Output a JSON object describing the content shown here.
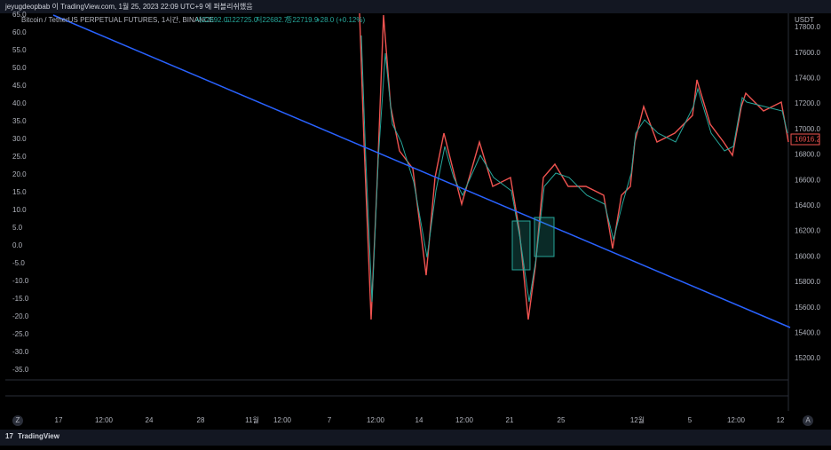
{
  "header": {
    "publish_text": "jeyugdeopbab 이 TradingView.com, 1월 25, 2023 22:09 UTC+9 에 퍼블리쉬했음"
  },
  "legend": {
    "symbol": "Bitcoin / TetherUS PERPETUAL FUTURES, 1시간, BINANCE",
    "open": "시22692.0",
    "high": "고22725.0",
    "low": "저22682.7",
    "close": "종22719.9",
    "change": "+28.0 (+0.12%)"
  },
  "left_axis": {
    "ticks": [
      "65.0",
      "60.0",
      "55.0",
      "50.0",
      "45.0",
      "40.0",
      "35.0",
      "30.0",
      "25.0",
      "20.0",
      "15.0",
      "10.0",
      "5.0",
      "0.0",
      "-5.0",
      "-10.0",
      "-15.0",
      "-20.0",
      "-25.0",
      "-30.0",
      "-35.0"
    ]
  },
  "right_axis": {
    "unit": "USDT",
    "ticks": [
      "17800.0",
      "17600.0",
      "17400.0",
      "17200.0",
      "17000.0",
      "16800.0",
      "16600.0",
      "16400.0",
      "16200.0",
      "16000.0",
      "15800.0",
      "15600.0",
      "15400.0",
      "15200.0"
    ],
    "price_label": "16916.2"
  },
  "time_axis": {
    "labels": [
      "17",
      "12:00",
      "24",
      "28",
      "11월",
      "12:00",
      "7",
      "12:00",
      "14",
      "12:00",
      "21",
      "25",
      "12월",
      "5",
      "12:00",
      "12"
    ],
    "left_button": "Z",
    "right_button": "A"
  },
  "footer": {
    "brand": "TradingView"
  }
}
